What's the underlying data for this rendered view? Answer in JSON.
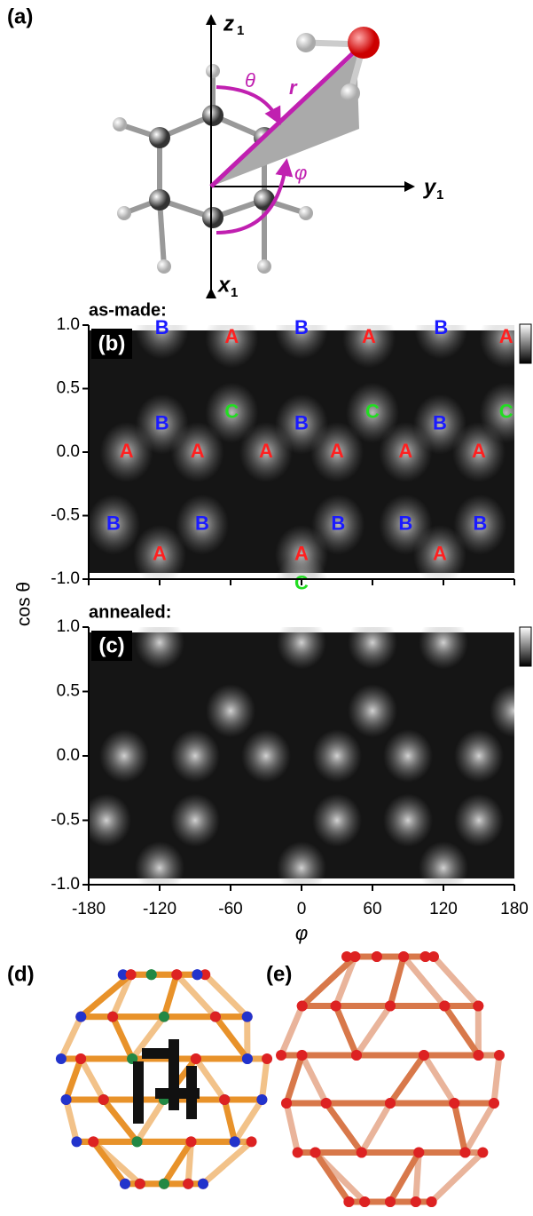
{
  "panel_a": {
    "label": "(a)",
    "z_axis": {
      "main": "z",
      "sub": "1"
    },
    "y_axis": {
      "main": "y",
      "sub": "1"
    },
    "x_axis": {
      "main": "x",
      "sub": "1"
    },
    "theta": "θ",
    "phi": "φ",
    "r": "r"
  },
  "chart_data": [
    {
      "type": "heatmap",
      "panel": "(b)",
      "title": "as-made:",
      "ylabel": "cos θ",
      "xlim": [
        -180,
        180
      ],
      "ylim": [
        -1,
        1
      ],
      "xticks": [
        -180,
        -120,
        -60,
        0,
        60,
        120,
        180
      ],
      "yticks": [
        {
          "value": 1,
          "label": "1.0"
        },
        0.5,
        {
          "value": 0,
          "label": "0.0"
        },
        -0.5,
        {
          "value": -1,
          "label": "-1.0"
        }
      ],
      "points": [
        {
          "label": "B",
          "color": "#1a1aff",
          "phi": -118,
          "cos": 0.97
        },
        {
          "label": "A",
          "color": "#ff2020",
          "phi": -59,
          "cos": 0.9
        },
        {
          "label": "B",
          "color": "#1a1aff",
          "phi": 0,
          "cos": 0.97
        },
        {
          "label": "A",
          "color": "#ff2020",
          "phi": 57,
          "cos": 0.9
        },
        {
          "label": "B",
          "color": "#1a1aff",
          "phi": 118,
          "cos": 0.97
        },
        {
          "label": "A",
          "color": "#ff2020",
          "phi": 173,
          "cos": 0.9
        },
        {
          "label": "C",
          "color": "#22dd22",
          "phi": -59,
          "cos": 0.31
        },
        {
          "label": "B",
          "color": "#1a1aff",
          "phi": -118,
          "cos": 0.22
        },
        {
          "label": "B",
          "color": "#1a1aff",
          "phi": 0,
          "cos": 0.22
        },
        {
          "label": "C",
          "color": "#22dd22",
          "phi": 60,
          "cos": 0.31
        },
        {
          "label": "B",
          "color": "#1a1aff",
          "phi": 117,
          "cos": 0.22
        },
        {
          "label": "C",
          "color": "#22dd22",
          "phi": 173,
          "cos": 0.31
        },
        {
          "label": "A",
          "color": "#ff2020",
          "phi": -148,
          "cos": 0
        },
        {
          "label": "A",
          "color": "#ff2020",
          "phi": -88,
          "cos": 0
        },
        {
          "label": "A",
          "color": "#ff2020",
          "phi": -30,
          "cos": 0
        },
        {
          "label": "A",
          "color": "#ff2020",
          "phi": 30,
          "cos": 0
        },
        {
          "label": "A",
          "color": "#ff2020",
          "phi": 88,
          "cos": 0
        },
        {
          "label": "A",
          "color": "#ff2020",
          "phi": 150,
          "cos": 0
        },
        {
          "label": "B",
          "color": "#1a1aff",
          "phi": -159,
          "cos": -0.57
        },
        {
          "label": "B",
          "color": "#1a1aff",
          "phi": -84,
          "cos": -0.57
        },
        {
          "label": "B",
          "color": "#1a1aff",
          "phi": 31,
          "cos": -0.57
        },
        {
          "label": "B",
          "color": "#1a1aff",
          "phi": 88,
          "cos": -0.57
        },
        {
          "label": "B",
          "color": "#1a1aff",
          "phi": 151,
          "cos": -0.57
        },
        {
          "label": "A",
          "color": "#ff2020",
          "phi": -120,
          "cos": -0.81
        },
        {
          "label": "A",
          "color": "#ff2020",
          "phi": 0,
          "cos": -0.81
        },
        {
          "label": "A",
          "color": "#ff2020",
          "phi": 117,
          "cos": -0.81
        },
        {
          "label": "C",
          "color": "#22dd22",
          "phi": 0,
          "cos": -1.04
        }
      ]
    },
    {
      "type": "heatmap",
      "panel": "(c)",
      "title": "annealed:",
      "xlabel": "φ",
      "xlim": [
        -180,
        180
      ],
      "ylim": [
        -1,
        1
      ],
      "xticks": [
        -180,
        -120,
        -60,
        0,
        60,
        120,
        180
      ],
      "yticks": [
        {
          "value": 1,
          "label": "1.0"
        },
        0.5,
        {
          "value": 0,
          "label": "0.0"
        },
        -0.5,
        {
          "value": -1,
          "label": "-1.0"
        }
      ],
      "x": [
        -120,
        0,
        60,
        120,
        -60,
        60,
        180,
        -150,
        -90,
        -30,
        30,
        90,
        150,
        -165,
        -90,
        30,
        90,
        150,
        -120,
        0,
        120
      ],
      "y": [
        0.88,
        0.88,
        0.88,
        0.88,
        0.35,
        0.35,
        0.35,
        0,
        0,
        0,
        0,
        0,
        0,
        -0.5,
        -0.5,
        -0.5,
        -0.5,
        -0.5,
        -0.87,
        -0.87,
        -0.87
      ]
    }
  ],
  "panel_d": {
    "label": "(d)"
  },
  "panel_e": {
    "label": "(e)"
  }
}
